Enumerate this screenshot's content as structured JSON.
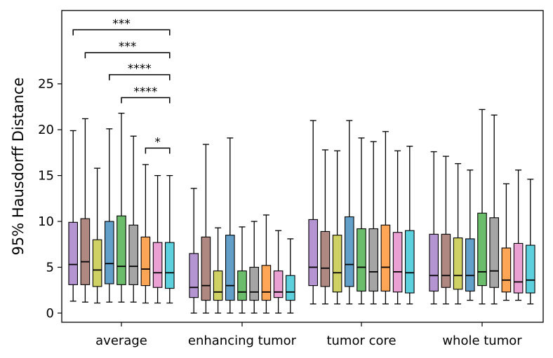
{
  "chart_data": {
    "type": "box",
    "title": "",
    "xlabel": "",
    "ylabel": "95% Hausdorff Distance",
    "ylim": [
      -1,
      33
    ],
    "yticks": [
      0,
      5,
      10,
      15,
      20,
      25
    ],
    "grid": false,
    "legend": "none",
    "categories": [
      "average",
      "enhancing tumor",
      "tumor core",
      "whole tumor"
    ],
    "series_colors": [
      "#9467bd",
      "#8c564b",
      "#bcbd22",
      "#1f77b4",
      "#2ca02c",
      "#7f7f7f",
      "#ff7f0e",
      "#e377c2",
      "#17becf"
    ],
    "box_alpha": 0.7,
    "groups": [
      {
        "category": "average",
        "boxes": [
          {
            "whislo": 1.3,
            "q1": 3.1,
            "med": 5.3,
            "q3": 9.9,
            "whishi": 19.9
          },
          {
            "whislo": 1.2,
            "q1": 3.1,
            "med": 5.6,
            "q3": 10.3,
            "whishi": 21.2
          },
          {
            "whislo": 1.1,
            "q1": 2.9,
            "med": 4.7,
            "q3": 8.0,
            "whishi": 15.8
          },
          {
            "whislo": 1.2,
            "q1": 3.2,
            "med": 5.4,
            "q3": 10.0,
            "whishi": 20.1
          },
          {
            "whislo": 1.2,
            "q1": 3.1,
            "med": 5.1,
            "q3": 10.6,
            "whishi": 21.8
          },
          {
            "whislo": 1.2,
            "q1": 3.1,
            "med": 5.1,
            "q3": 9.6,
            "whishi": 19.3
          },
          {
            "whislo": 1.1,
            "q1": 3.0,
            "med": 4.8,
            "q3": 8.3,
            "whishi": 16.2
          },
          {
            "whislo": 1.1,
            "q1": 2.8,
            "med": 4.4,
            "q3": 7.7,
            "whishi": 15.0
          },
          {
            "whislo": 1.1,
            "q1": 2.7,
            "med": 4.4,
            "q3": 7.7,
            "whishi": 15.0
          }
        ]
      },
      {
        "category": "enhancing tumor",
        "boxes": [
          {
            "whislo": 0.0,
            "q1": 1.7,
            "med": 2.8,
            "q3": 6.5,
            "whishi": 13.6
          },
          {
            "whislo": 0.0,
            "q1": 1.4,
            "med": 3.0,
            "q3": 8.3,
            "whishi": 18.4
          },
          {
            "whislo": 0.0,
            "q1": 1.4,
            "med": 2.3,
            "q3": 4.6,
            "whishi": 9.3
          },
          {
            "whislo": 0.0,
            "q1": 1.4,
            "med": 3.0,
            "q3": 8.5,
            "whishi": 19.1
          },
          {
            "whislo": 0.0,
            "q1": 1.4,
            "med": 2.3,
            "q3": 4.6,
            "whishi": 9.4
          },
          {
            "whislo": 0.0,
            "q1": 1.4,
            "med": 2.3,
            "q3": 5.0,
            "whishi": 10.0
          },
          {
            "whislo": 0.0,
            "q1": 1.4,
            "med": 2.3,
            "q3": 5.2,
            "whishi": 10.7
          },
          {
            "whislo": 0.0,
            "q1": 1.7,
            "med": 2.3,
            "q3": 4.6,
            "whishi": 9.0
          },
          {
            "whislo": 0.0,
            "q1": 1.4,
            "med": 2.3,
            "q3": 4.1,
            "whishi": 8.1
          }
        ]
      },
      {
        "category": "tumor core",
        "boxes": [
          {
            "whislo": 1.0,
            "q1": 3.0,
            "med": 5.0,
            "q3": 10.2,
            "whishi": 21.0
          },
          {
            "whislo": 1.0,
            "q1": 2.9,
            "med": 4.9,
            "q3": 8.9,
            "whishi": 17.8
          },
          {
            "whislo": 1.0,
            "q1": 2.3,
            "med": 4.4,
            "q3": 8.5,
            "whishi": 17.7
          },
          {
            "whislo": 1.0,
            "q1": 2.9,
            "med": 5.3,
            "q3": 10.5,
            "whishi": 21.0
          },
          {
            "whislo": 1.0,
            "q1": 2.4,
            "med": 5.0,
            "q3": 9.2,
            "whishi": 19.1
          },
          {
            "whislo": 1.0,
            "q1": 2.4,
            "med": 4.5,
            "q3": 9.2,
            "whishi": 18.7
          },
          {
            "whislo": 1.0,
            "q1": 2.4,
            "med": 5.0,
            "q3": 9.6,
            "whishi": 19.8
          },
          {
            "whislo": 1.0,
            "q1": 2.3,
            "med": 4.5,
            "q3": 8.8,
            "whishi": 17.7
          },
          {
            "whislo": 1.0,
            "q1": 2.2,
            "med": 4.4,
            "q3": 9.0,
            "whishi": 18.2
          }
        ]
      },
      {
        "category": "whole tumor",
        "boxes": [
          {
            "whislo": 1.0,
            "q1": 2.4,
            "med": 4.1,
            "q3": 8.6,
            "whishi": 17.6
          },
          {
            "whislo": 1.0,
            "q1": 2.8,
            "med": 4.1,
            "q3": 8.6,
            "whishi": 17.1
          },
          {
            "whislo": 1.0,
            "q1": 2.6,
            "med": 4.1,
            "q3": 8.2,
            "whishi": 16.3
          },
          {
            "whislo": 1.4,
            "q1": 2.4,
            "med": 4.1,
            "q3": 8.1,
            "whishi": 15.6
          },
          {
            "whislo": 1.0,
            "q1": 3.0,
            "med": 4.5,
            "q3": 10.9,
            "whishi": 22.2
          },
          {
            "whislo": 1.0,
            "q1": 2.8,
            "med": 4.6,
            "q3": 10.4,
            "whishi": 21.6
          },
          {
            "whislo": 1.4,
            "q1": 2.3,
            "med": 3.6,
            "q3": 7.1,
            "whishi": 14.1
          },
          {
            "whislo": 1.4,
            "q1": 2.2,
            "med": 3.4,
            "q3": 7.6,
            "whishi": 15.6
          },
          {
            "whislo": 1.0,
            "q1": 2.2,
            "med": 3.6,
            "q3": 7.4,
            "whishi": 14.6
          }
        ]
      }
    ],
    "significance": [
      {
        "label": "***",
        "from_box": 0,
        "to_box": 8,
        "y": 30.9
      },
      {
        "label": "***",
        "from_box": 1,
        "to_box": 8,
        "y": 28.4
      },
      {
        "label": "****",
        "from_box": 3,
        "to_box": 8,
        "y": 26.0
      },
      {
        "label": "****",
        "from_box": 4,
        "to_box": 8,
        "y": 23.5
      },
      {
        "label": "*",
        "from_box": 6,
        "to_box": 8,
        "y": 18.0
      }
    ]
  }
}
